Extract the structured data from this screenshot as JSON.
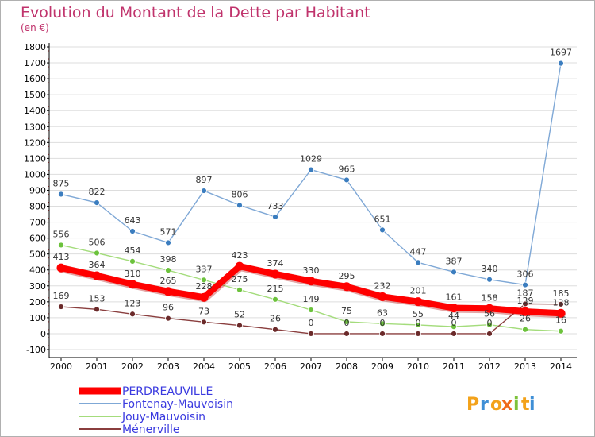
{
  "chart_data": {
    "type": "line",
    "title": "Evolution du Montant de la Dette par Habitant",
    "subtitle": "(en €)",
    "xlabel": "",
    "ylabel": "",
    "ylim": [
      -100,
      1800
    ],
    "yticks": [
      "-100",
      "0",
      "100",
      "200",
      "300",
      "400",
      "500",
      "600",
      "700",
      "800",
      "900",
      "1000",
      "1100",
      "1200",
      "1300",
      "1400",
      "1500",
      "1600",
      "1700",
      "1800"
    ],
    "categories": [
      "2000",
      "2001",
      "2002",
      "2003",
      "2004",
      "2005",
      "2006",
      "2007",
      "2008",
      "2009",
      "2010",
      "2011",
      "2012",
      "2013",
      "2014"
    ],
    "grid": true,
    "legend_position": "bottom-left",
    "series": [
      {
        "name": "Fontenay-Mauvoisin",
        "color": "#7fa8d6",
        "marker_color": "#3b7dbf",
        "values": [
          875,
          822,
          643,
          571,
          897,
          806,
          733,
          1029,
          965,
          651,
          447,
          387,
          340,
          306,
          1697
        ],
        "labels": [
          "875",
          "822",
          "643",
          "571",
          "897",
          "806",
          "733",
          "1029",
          "965",
          "651",
          "447",
          "387",
          "340",
          "306",
          "1697"
        ]
      },
      {
        "name": "Jouy-Mauvoisin",
        "color": "#a4dc7c",
        "marker_color": "#6cc23c",
        "values": [
          556,
          506,
          454,
          398,
          337,
          275,
          215,
          149,
          75,
          63,
          55,
          44,
          56,
          26,
          16
        ],
        "labels": [
          "556",
          "506",
          "454",
          "398",
          "337",
          "275",
          "215",
          "149",
          "75",
          "63",
          "55",
          "44",
          "56",
          "26",
          "16"
        ]
      },
      {
        "name": "Ménerville",
        "color": "#8a3e3e",
        "marker_color": "#6b2a2a",
        "values": [
          169,
          153,
          123,
          96,
          73,
          52,
          26,
          0,
          0,
          0,
          0,
          0,
          0,
          187,
          185
        ],
        "labels": [
          "169",
          "153",
          "123",
          "96",
          "73",
          "52",
          "26",
          "0",
          "0",
          "0",
          "0",
          "0",
          "0",
          "187",
          "185"
        ]
      },
      {
        "name": "PERDREAUVILLE",
        "color": "#ff0000",
        "marker_color": "#ff0000",
        "values": [
          413,
          364,
          310,
          265,
          228,
          423,
          374,
          330,
          295,
          232,
          201,
          161,
          158,
          139,
          128
        ],
        "labels": [
          "413",
          "364",
          "310",
          "265",
          "228",
          "423",
          "374",
          "330",
          "295",
          "232",
          "201",
          "161",
          "158",
          "139",
          "128"
        ]
      }
    ],
    "legend_order": [
      "PERDREAUVILLE",
      "Fontenay-Mauvoisin",
      "Jouy-Mauvoisin",
      "Ménerville"
    ]
  },
  "logo": {
    "text": "Proxiti",
    "colors": [
      "#f3a21a",
      "#3f8fd6",
      "#f3a21a",
      "#f06a1a",
      "#7dc23a",
      "#f3a21a",
      "#3f8fd6"
    ]
  },
  "colors": {
    "title": "#c0336c",
    "subtitle": "#c0336c",
    "grid": "#dddddd",
    "axis": "#000000",
    "legend_text": "#3a3adf"
  }
}
